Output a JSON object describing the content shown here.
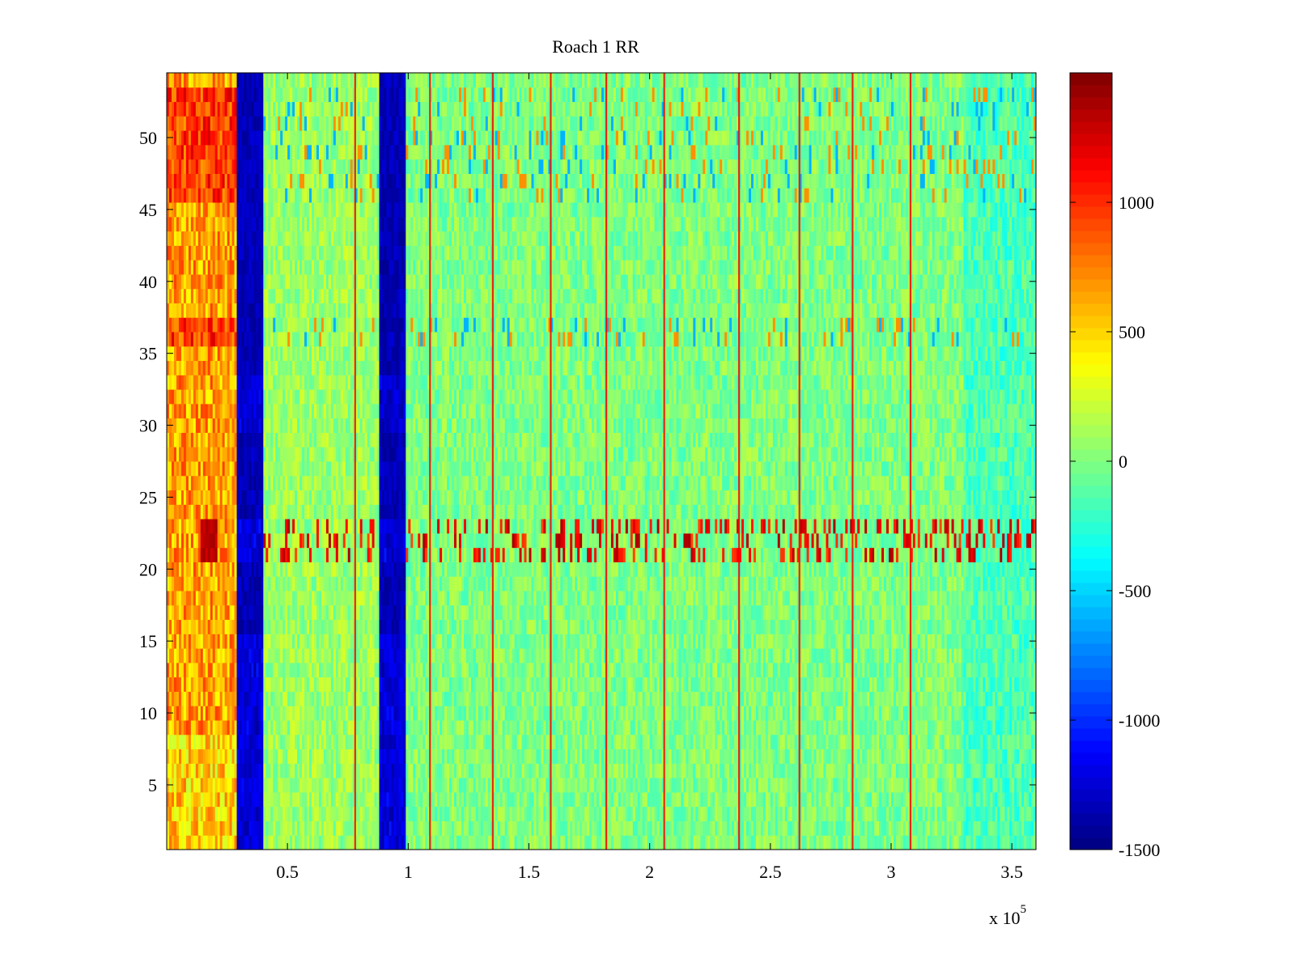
{
  "chart_data": {
    "type": "heatmap",
    "title": "Roach 1 RR",
    "xlabel": "",
    "ylabel": "",
    "x_exponent_label": "x 10",
    "x_exponent_power": "5",
    "xlim": [
      0,
      360000
    ],
    "ylim": [
      0.5,
      54.5
    ],
    "x_ticks": [
      50000,
      100000,
      150000,
      200000,
      250000,
      300000,
      350000
    ],
    "x_tick_labels": [
      "0.5",
      "1",
      "1.5",
      "2",
      "2.5",
      "3",
      "3.5"
    ],
    "y_ticks": [
      5,
      10,
      15,
      20,
      25,
      30,
      35,
      40,
      45,
      50
    ],
    "y_tick_labels": [
      "5",
      "10",
      "15",
      "20",
      "25",
      "30",
      "35",
      "40",
      "45",
      "50"
    ],
    "rows": 54,
    "colormap": "jet",
    "clim": [
      -1500,
      1500
    ],
    "colorbar": {
      "ticks": [
        -1500,
        -1000,
        -500,
        0,
        500,
        1000
      ],
      "tick_labels": [
        "-1500",
        "-1000",
        "-500",
        "0",
        "500",
        "1000"
      ]
    },
    "regions": [
      {
        "x_start": 0,
        "x_end": 29000,
        "approx_value": 650
      },
      {
        "x_start": 29000,
        "x_end": 40000,
        "approx_value": -1450
      },
      {
        "x_start": 40000,
        "x_end": 88000,
        "approx_value": 80
      },
      {
        "x_start": 88000,
        "x_end": 99000,
        "approx_value": -1450
      },
      {
        "x_start": 99000,
        "x_end": 330000,
        "approx_value": 0
      },
      {
        "x_start": 330000,
        "x_end": 360000,
        "approx_value": -150
      }
    ],
    "spike_columns": [
      78000,
      109000,
      135000,
      159000,
      182000,
      206000,
      237000,
      262000,
      284000,
      308000
    ],
    "hot_band_rows": [
      21,
      22,
      23
    ],
    "hot_patch": {
      "x_start": 14000,
      "x_end": 21000,
      "rows": [
        21,
        22,
        23
      ],
      "approx_value": 1400
    },
    "warm_rows": [
      36,
      37,
      46,
      47,
      48,
      49,
      50,
      51,
      52,
      53
    ]
  }
}
